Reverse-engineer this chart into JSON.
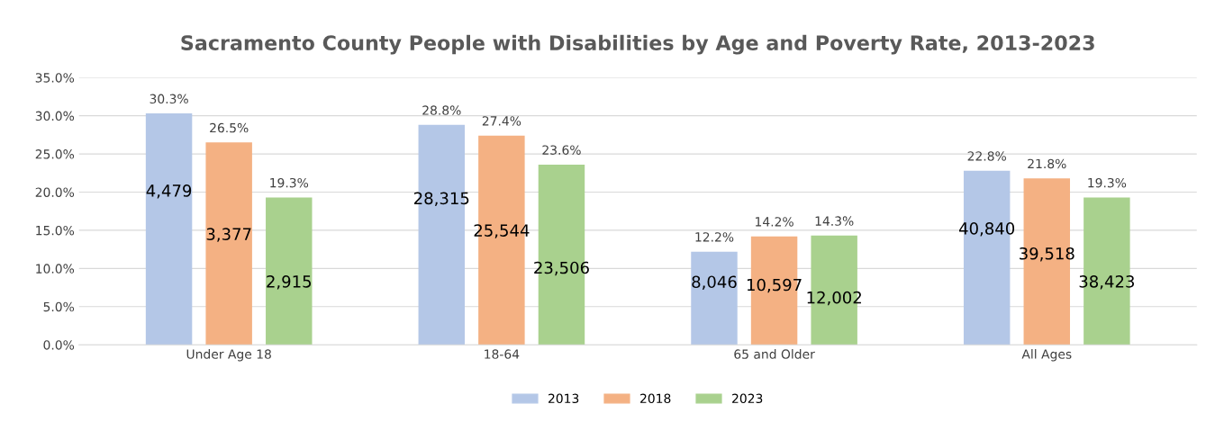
{
  "chart_data": {
    "type": "bar",
    "title": "Sacramento County People with Disabilities by Age and Poverty Rate, 2013-2023",
    "categories": [
      "Under Age 18",
      "18-64",
      "65 and Older",
      "All Ages"
    ],
    "series": [
      {
        "name": "2013",
        "color": "#b4c7e7",
        "values": [
          30.3,
          28.8,
          12.2,
          22.8
        ],
        "value_labels": [
          "30.3%",
          "28.8%",
          "12.2%",
          "22.8%"
        ]
      },
      {
        "name": "2018",
        "color": "#f4b183",
        "values": [
          26.5,
          27.4,
          14.2,
          21.8
        ],
        "value_labels": [
          "26.5%",
          "27.4%",
          "14.2%",
          "21.8%"
        ]
      },
      {
        "name": "2023",
        "color": "#a9d18e",
        "values": [
          19.3,
          23.6,
          14.3,
          19.3
        ],
        "value_labels": [
          "19.3%",
          "23.6%",
          "14.3%",
          "19.3%"
        ]
      }
    ],
    "ylim": [
      0,
      35
    ],
    "yticks": [
      {
        "value": 0,
        "label": "0.0%"
      },
      {
        "value": 5,
        "label": "5.0%"
      },
      {
        "value": 10,
        "label": "10.0%"
      },
      {
        "value": 15,
        "label": "15.0%"
      },
      {
        "value": 20,
        "label": "20.0%"
      },
      {
        "value": 25,
        "label": "25.0%"
      },
      {
        "value": 30,
        "label": "30.0%"
      },
      {
        "value": 35,
        "label": "35.0%"
      }
    ],
    "grid": "y",
    "legend": "bottom",
    "annotations": [
      "4,479",
      "3,377",
      "2,915",
      "28,315",
      "25,544",
      "23,506",
      "8,046",
      "10,597",
      "12,002",
      "40,840",
      "39,518",
      "38,423"
    ]
  }
}
